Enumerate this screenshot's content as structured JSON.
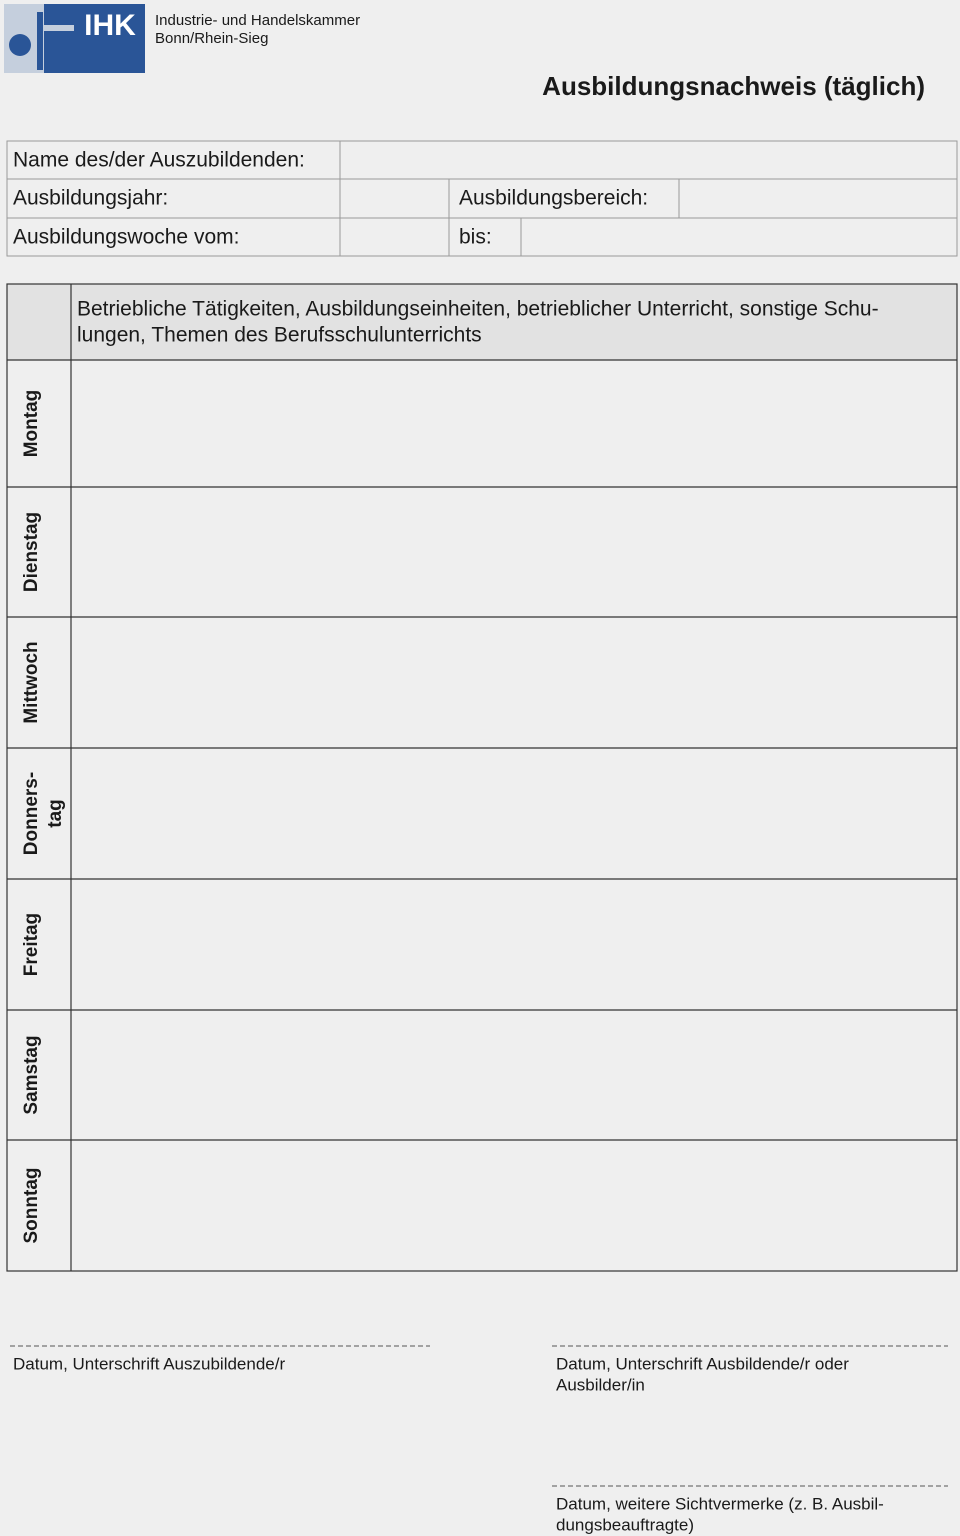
{
  "header": {
    "logo_text": "IHK",
    "organization": [
      "Industrie- und Handelskammer",
      "Bonn/Rhein-Sieg"
    ],
    "title": "Ausbildungsnachweis (täglich)"
  },
  "info": {
    "name_label": "Name des/der Auszubildenden:",
    "year_label": "Ausbildungsjahr:",
    "area_label": "Ausbildungsbereich:",
    "week_label": "Ausbildungswoche vom:",
    "until_label": "bis:"
  },
  "activity_table": {
    "header": [
      "Betriebliche Tätigkeiten, Ausbildungseinheiten, betrieblicher Unterricht, sonstige Schu-",
      "lungen, Themen des Berufsschulunterrichts"
    ],
    "days": [
      [
        "Montag"
      ],
      [
        "Dienstag"
      ],
      [
        "Mittwoch"
      ],
      [
        "Donners-",
        "tag"
      ],
      [
        "Freitag"
      ],
      [
        "Samstag"
      ],
      [
        "Sonntag"
      ]
    ]
  },
  "signatures": {
    "trainee": [
      "Datum, Unterschrift Auszubildende/r"
    ],
    "trainer": [
      "Datum, Unterschrift Ausbildende/r oder",
      "Ausbilder/in"
    ],
    "remarks": [
      "Datum, weitere Sichtvermerke (z. B. Ausbil-",
      "dungsbeauftragte)"
    ]
  }
}
